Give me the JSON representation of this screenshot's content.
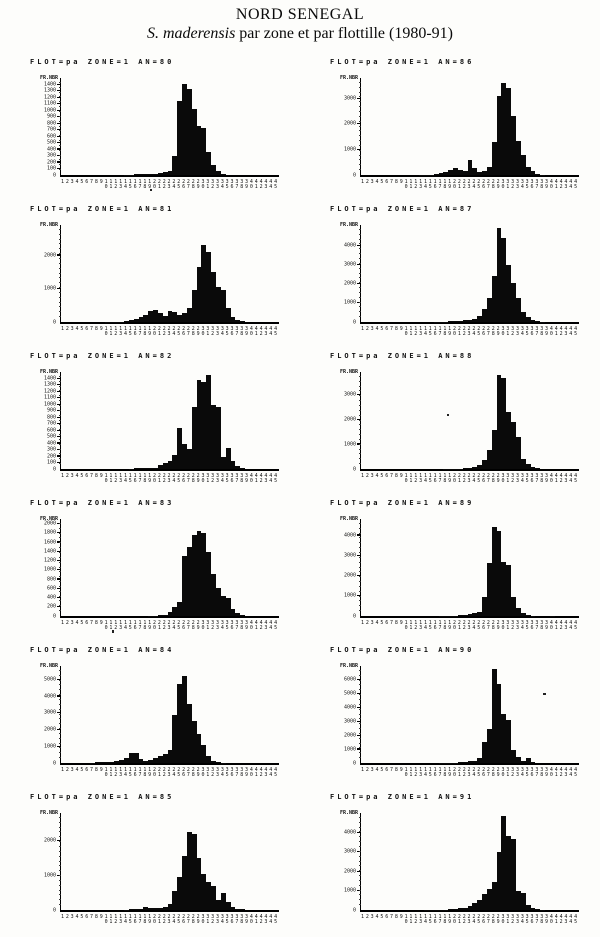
{
  "page": {
    "title": "NORD SENEGAL",
    "subtitle_species": "S. maderensis",
    "subtitle_rest": " par zone et par flottille (1980-91)"
  },
  "axis": {
    "y_corner_label": "FR.NBR",
    "x_class_from": 1,
    "x_class_to": 45
  },
  "chart_data": [
    {
      "type": "bar",
      "title": "FLOT=pa ZONE=1 AN=80",
      "an": "80",
      "ymax": 1500,
      "yticks": [
        0,
        100,
        200,
        300,
        400,
        500,
        600,
        700,
        800,
        900,
        1000,
        1100,
        1200,
        1300,
        1400
      ],
      "values": [
        0,
        0,
        0,
        0,
        0,
        0,
        0,
        0,
        0,
        0,
        0,
        0,
        0,
        5,
        5,
        8,
        10,
        12,
        15,
        20,
        25,
        40,
        60,
        300,
        1150,
        1400,
        1330,
        1020,
        760,
        720,
        350,
        150,
        60,
        20,
        0,
        0,
        0,
        0,
        0,
        0,
        0,
        0,
        0,
        0,
        0
      ]
    },
    {
      "type": "bar",
      "title": "FLOT=pa ZONE=1 AN=81",
      "an": "81",
      "ymax": 2900,
      "yticks": [
        0,
        1000,
        2000
      ],
      "values": [
        0,
        0,
        0,
        0,
        0,
        0,
        0,
        0,
        0,
        5,
        8,
        10,
        15,
        30,
        60,
        90,
        140,
        220,
        340,
        360,
        260,
        190,
        330,
        310,
        210,
        260,
        420,
        950,
        1650,
        2300,
        2100,
        1500,
        1060,
        960,
        420,
        160,
        60,
        20,
        0,
        0,
        0,
        0,
        0,
        0,
        0
      ]
    },
    {
      "type": "bar",
      "title": "FLOT=pa ZONE=1 AN=82",
      "an": "82",
      "ymax": 1500,
      "yticks": [
        0,
        100,
        200,
        300,
        400,
        500,
        600,
        700,
        800,
        900,
        1000,
        1100,
        1200,
        1300,
        1400
      ],
      "values": [
        0,
        0,
        0,
        0,
        0,
        0,
        0,
        0,
        0,
        0,
        0,
        0,
        0,
        0,
        5,
        8,
        10,
        12,
        15,
        20,
        60,
        90,
        130,
        210,
        640,
        390,
        310,
        960,
        1380,
        1340,
        1450,
        990,
        960,
        190,
        330,
        120,
        50,
        15,
        0,
        0,
        0,
        0,
        0,
        0,
        0
      ]
    },
    {
      "type": "bar",
      "title": "FLOT=pa ZONE=1 AN=83",
      "an": "83",
      "ymax": 2100,
      "yticks": [
        0,
        200,
        400,
        600,
        800,
        1000,
        1200,
        1400,
        1600,
        1800,
        2000
      ],
      "values": [
        0,
        0,
        0,
        0,
        0,
        0,
        0,
        0,
        0,
        0,
        0,
        0,
        0,
        0,
        0,
        0,
        0,
        0,
        5,
        8,
        15,
        30,
        90,
        190,
        310,
        1300,
        1500,
        1750,
        1850,
        1800,
        1380,
        900,
        600,
        430,
        380,
        150,
        60,
        20,
        0,
        0,
        0,
        0,
        0,
        0,
        0
      ]
    },
    {
      "type": "bar",
      "title": "FLOT=pa ZONE=1 AN=84",
      "an": "84",
      "ymax": 5800,
      "yticks": [
        0,
        1000,
        2000,
        3000,
        4000,
        5000
      ],
      "values": [
        0,
        0,
        0,
        0,
        0,
        0,
        30,
        40,
        50,
        60,
        80,
        120,
        160,
        300,
        620,
        580,
        220,
        120,
        180,
        320,
        420,
        520,
        800,
        2900,
        4700,
        5200,
        3500,
        2500,
        1750,
        1100,
        420,
        150,
        60,
        20,
        0,
        0,
        0,
        0,
        0,
        0,
        0,
        0,
        0,
        0,
        0
      ]
    },
    {
      "type": "bar",
      "title": "FLOT=pa ZONE=1 AN=85",
      "an": "85",
      "ymax": 2800,
      "yticks": [
        0,
        1000,
        2000
      ],
      "values": [
        0,
        0,
        0,
        0,
        0,
        0,
        0,
        0,
        0,
        0,
        0,
        0,
        0,
        10,
        15,
        20,
        30,
        80,
        60,
        50,
        70,
        100,
        160,
        560,
        950,
        1550,
        2250,
        2200,
        1500,
        1050,
        820,
        700,
        300,
        480,
        220,
        100,
        40,
        15,
        0,
        0,
        0,
        0,
        0,
        0,
        0
      ]
    },
    {
      "type": "bar",
      "title": "FLOT=pa ZONE=1 AN=86",
      "an": "86",
      "ymax": 3800,
      "yticks": [
        0,
        1000,
        2000,
        3000
      ],
      "values": [
        0,
        0,
        0,
        0,
        0,
        0,
        0,
        0,
        0,
        0,
        0,
        0,
        10,
        15,
        20,
        30,
        60,
        120,
        200,
        260,
        200,
        160,
        600,
        260,
        120,
        160,
        320,
        1300,
        3100,
        3600,
        3400,
        2300,
        1350,
        800,
        330,
        140,
        50,
        15,
        0,
        0,
        0,
        0,
        0,
        0,
        0
      ]
    },
    {
      "type": "bar",
      "title": "FLOT=pa ZONE=1 AN=87",
      "an": "87",
      "ymax": 5100,
      "yticks": [
        0,
        1000,
        2000,
        3000,
        4000
      ],
      "values": [
        0,
        0,
        0,
        0,
        0,
        0,
        0,
        0,
        0,
        0,
        0,
        0,
        0,
        0,
        0,
        10,
        15,
        20,
        30,
        40,
        60,
        90,
        130,
        170,
        330,
        700,
        1250,
        2400,
        4950,
        4400,
        3000,
        2050,
        1250,
        520,
        260,
        110,
        40,
        15,
        0,
        0,
        0,
        0,
        0,
        0,
        0
      ]
    },
    {
      "type": "bar",
      "title": "FLOT=pa ZONE=1 AN=88",
      "an": "88",
      "ymax": 3900,
      "yticks": [
        0,
        1000,
        2000,
        3000
      ],
      "values": [
        0,
        0,
        0,
        0,
        0,
        0,
        0,
        0,
        0,
        0,
        0,
        0,
        0,
        0,
        0,
        0,
        0,
        8,
        10,
        15,
        20,
        30,
        50,
        90,
        160,
        380,
        750,
        1550,
        3800,
        3650,
        2300,
        1900,
        1300,
        420,
        200,
        90,
        30,
        0,
        0,
        0,
        0,
        0,
        0,
        0,
        0
      ]
    },
    {
      "type": "bar",
      "title": "FLOT=pa ZONE=1 AN=89",
      "an": "89",
      "ymax": 4800,
      "yticks": [
        0,
        1000,
        2000,
        3000,
        4000
      ],
      "values": [
        0,
        0,
        0,
        0,
        0,
        0,
        0,
        0,
        0,
        0,
        0,
        0,
        0,
        0,
        0,
        0,
        8,
        10,
        15,
        25,
        40,
        60,
        90,
        130,
        220,
        950,
        2600,
        4400,
        4200,
        2650,
        2500,
        950,
        380,
        130,
        50,
        20,
        0,
        0,
        0,
        15,
        0,
        0,
        0,
        0,
        0
      ]
    },
    {
      "type": "bar",
      "title": "FLOT=pa ZONE=1 AN=90",
      "an": "90",
      "ymax": 7000,
      "yticks": [
        0,
        1000,
        2000,
        3000,
        4000,
        5000,
        6000
      ],
      "values": [
        0,
        0,
        0,
        0,
        0,
        0,
        0,
        0,
        0,
        0,
        0,
        0,
        0,
        0,
        0,
        0,
        8,
        10,
        15,
        25,
        40,
        70,
        110,
        170,
        380,
        1550,
        2450,
        6800,
        5700,
        3550,
        3100,
        950,
        420,
        170,
        350,
        60,
        0,
        0,
        0,
        0,
        0,
        0,
        0,
        0,
        0
      ]
    },
    {
      "type": "bar",
      "title": "FLOT=pa ZONE=1 AN=91",
      "an": "91",
      "ymax": 5000,
      "yticks": [
        0,
        1000,
        2000,
        3000,
        4000
      ],
      "values": [
        0,
        0,
        0,
        0,
        0,
        0,
        0,
        0,
        0,
        0,
        0,
        0,
        0,
        8,
        10,
        15,
        20,
        25,
        35,
        50,
        80,
        120,
        200,
        340,
        520,
        800,
        1100,
        1450,
        3000,
        4850,
        3800,
        3650,
        1000,
        900,
        260,
        110,
        40,
        15,
        0,
        0,
        0,
        0,
        0,
        0,
        0
      ]
    }
  ]
}
